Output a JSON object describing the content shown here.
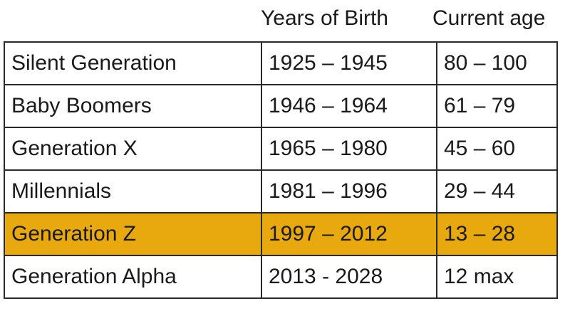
{
  "header": {
    "columns": [
      "Years of Birth",
      "Current age"
    ]
  },
  "table": {
    "rows": [
      [
        "Silent Generation",
        "1925 – 1945",
        "80 – 100"
      ],
      [
        "Baby Boomers",
        "1946 – 1964",
        "61 – 79"
      ],
      [
        "Generation X",
        "1965 – 1980",
        "45 – 60"
      ],
      [
        "Millennials",
        "1981 – 1996",
        "29 – 44"
      ],
      [
        "Generation Z",
        "1997 – 2012",
        "13 – 28"
      ],
      [
        "Generation Alpha",
        "2013 - 2028",
        "12 max"
      ]
    ],
    "highlight": {
      "row": 4,
      "color": "#e8a90f"
    }
  }
}
